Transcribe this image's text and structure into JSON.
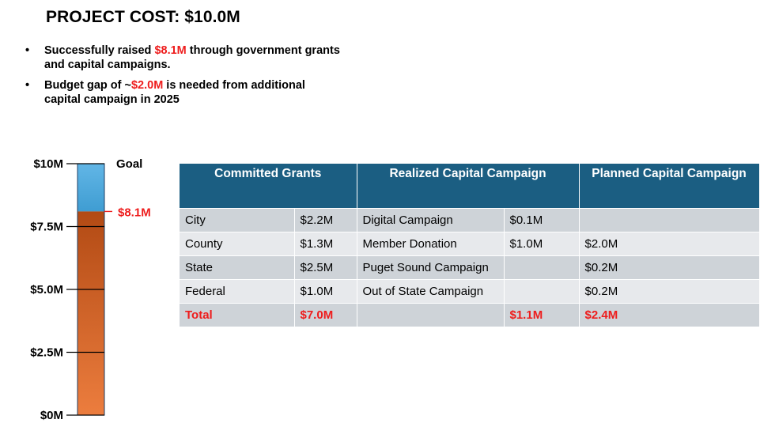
{
  "title": "PROJECT COST: $10.0M",
  "bullets": [
    {
      "before": "Successfully raised ",
      "highlight": "$8.1M",
      "after": " through government grants and capital campaigns."
    },
    {
      "before": "Budget gap of ~",
      "highlight": "$2.0M",
      "after": " is needed from additional capital campaign in 2025"
    }
  ],
  "chart_data": {
    "type": "bar",
    "orientation": "vertical-progress",
    "ylim": [
      0,
      10
    ],
    "unit": "$M",
    "ticks": [
      {
        "value": 10,
        "label": "$10M"
      },
      {
        "value": 7.5,
        "label": "$7.5M"
      },
      {
        "value": 5.0,
        "label": "$5.0M"
      },
      {
        "value": 2.5,
        "label": "$2.5M"
      },
      {
        "value": 0,
        "label": "$0M"
      }
    ],
    "raised": {
      "value": 8.1,
      "label": "$8.1M",
      "color": "#e8763a"
    },
    "goal": {
      "value": 10,
      "label": "Goal",
      "color": "#4aa9dc"
    },
    "raised_label_color": "#ee1c1c"
  },
  "table": {
    "headers": [
      "Committed Grants",
      "Realized Capital Campaign",
      "Planned Capital Campaign"
    ],
    "rows": [
      [
        "City",
        "$2.2M",
        "Digital Campaign",
        "$0.1M",
        ""
      ],
      [
        "County",
        "$1.3M",
        "Member Donation",
        "$1.0M",
        "$2.0M"
      ],
      [
        "State",
        "$2.5M",
        "Puget Sound Campaign",
        "",
        "$0.2M"
      ],
      [
        "Federal",
        "$1.0M",
        "Out of State Campaign",
        "",
        "$0.2M"
      ]
    ],
    "total": [
      "Total",
      "$7.0M",
      "",
      "$1.1M",
      "$2.4M"
    ]
  },
  "colors": {
    "header_bg": "#1b5e82",
    "row_dark": "#ced3d8",
    "row_light": "#e7e9ec",
    "accent_red": "#ee1c1c"
  }
}
